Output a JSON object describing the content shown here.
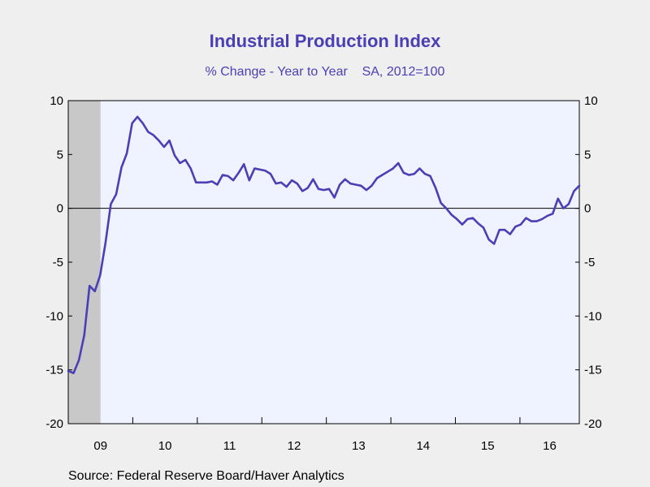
{
  "chart_data": {
    "type": "line",
    "title": "Industrial Production Index",
    "subtitle": "% Change - Year to Year    SA, 2012=100",
    "source": "Source:  Federal Reserve Board/Haver Analytics",
    "xlabel": "",
    "ylabel": "",
    "ylim": [
      -20,
      10
    ],
    "xlim": [
      2009.0,
      2016.92
    ],
    "y_ticks_left": [
      "10",
      "5",
      "0",
      "-5",
      "-10",
      "-15",
      "-20"
    ],
    "y_ticks_right": [
      "10",
      "5",
      "0",
      "-5",
      "-10",
      "-15",
      "-20"
    ],
    "x_tick_labels": [
      "09",
      "10",
      "11",
      "12",
      "13",
      "14",
      "15",
      "16"
    ],
    "grid": false,
    "zero_line": true,
    "recession_shading": [
      [
        2009.0,
        2009.5
      ]
    ],
    "colors": {
      "line": "#4b3fb5",
      "plot_background": "#eef3ff",
      "recession": "#c8c8c8",
      "title": "#4b3fb5"
    },
    "series": [
      {
        "values": [
          -15.1,
          -15.3,
          -14.1,
          -11.8,
          -7.2,
          -7.7,
          -6.2,
          -3.2,
          0.4,
          1.3,
          3.8,
          5.1,
          7.9,
          8.5,
          7.9,
          7.1,
          6.8,
          6.3,
          5.7,
          6.3,
          4.9,
          4.2,
          4.5,
          3.7,
          2.4,
          2.4,
          2.4,
          2.5,
          2.2,
          3.1,
          3.0,
          2.6,
          3.3,
          4.1,
          2.6,
          3.7,
          3.6,
          3.5,
          3.2,
          2.3,
          2.4,
          2.0,
          2.6,
          2.3,
          1.6,
          1.9,
          2.7,
          1.8,
          1.7,
          1.8,
          1.0,
          2.2,
          2.7,
          2.3,
          2.2,
          2.1,
          1.7,
          2.1,
          2.8,
          3.1,
          3.4,
          3.7,
          4.2,
          3.3,
          3.1,
          3.2,
          3.7,
          3.2,
          3.0,
          1.9,
          0.5,
          0.0,
          -0.6,
          -1.0,
          -1.5,
          -1.0,
          -0.9,
          -1.4,
          -1.8,
          -2.9,
          -3.3,
          -2.0,
          -2.0,
          -2.4,
          -1.7,
          -1.5,
          -0.9,
          -1.2,
          -1.2,
          -1.0,
          -0.7,
          -0.5,
          0.9,
          0.0,
          0.4,
          1.6,
          2.1
        ]
      }
    ]
  }
}
